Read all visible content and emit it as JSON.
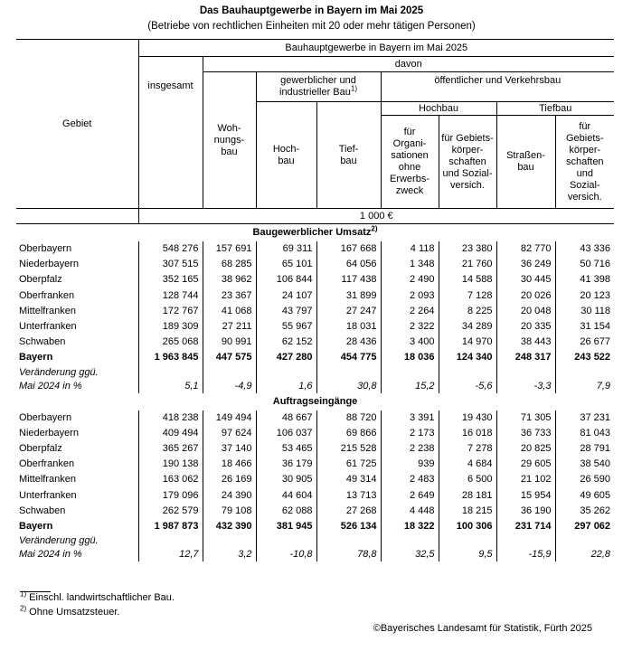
{
  "title": "Das Bauhauptgewerbe in Bayern im Mai 2025",
  "subtitle": "(Betriebe von rechtlichen Einheiten mit 20 oder mehr tätigen Personen)",
  "header": {
    "gebiet": "Gebiet",
    "top": "Bauhauptgewerbe in Bayern im Mai 2025",
    "insgesamt": "insgesamt",
    "davon": "davon",
    "wohnungsbau": "Woh-\nnungs-\nbau",
    "gewerblich": "gewerblicher und\nindustrieller Bau",
    "gewerblich_sup": "1)",
    "oeffentlich": "öffentlicher und Verkehrsbau",
    "hochbau_group": "Hochbau",
    "tiefbau_group": "Tiefbau",
    "hochbau": "Hoch-\nbau",
    "tiefbau": "Tief-\nbau",
    "org": "für\nOrgani-\nsationen\nohne\nErwerbs-\nzweck",
    "geb1": "für Gebiets-\nkörper-\nschaften\nund Sozial-\nversich.",
    "strassen": "Straßen-\nbau",
    "geb2": "für\nGebiets-\nkörper-\nschaften\nund\nSozial-\nversich.",
    "unit": "1 000 €"
  },
  "sections": [
    {
      "title": "Baugewerblicher Umsatz",
      "sup": "2)",
      "rows": [
        {
          "name": "Oberbayern",
          "v": [
            "548 276",
            "157 691",
            "69 311",
            "167 668",
            "4 118",
            "23 380",
            "82 770",
            "43 336"
          ]
        },
        {
          "name": "Niederbayern",
          "v": [
            "307 515",
            "68 285",
            "65 101",
            "64 056",
            "1 348",
            "21 760",
            "36 249",
            "50 716"
          ]
        },
        {
          "name": "Oberpfalz",
          "v": [
            "352 165",
            "38 962",
            "106 844",
            "117 438",
            "2 490",
            "14 588",
            "30 445",
            "41 398"
          ]
        },
        {
          "name": "Oberfranken",
          "v": [
            "128 744",
            "23 367",
            "24 107",
            "31 899",
            "2 093",
            "7 128",
            "20 026",
            "20 123"
          ]
        },
        {
          "name": "Mittelfranken",
          "v": [
            "172 767",
            "41 068",
            "43 797",
            "27 247",
            "2 264",
            "8 225",
            "20 048",
            "30 118"
          ]
        },
        {
          "name": "Unterfranken",
          "v": [
            "189 309",
            "27 211",
            "55 967",
            "18 031",
            "2 322",
            "34 289",
            "20 335",
            "31 154"
          ]
        },
        {
          "name": "Schwaben",
          "v": [
            "265 068",
            "90 991",
            "62 152",
            "28 436",
            "3 400",
            "14 970",
            "38 443",
            "26 677"
          ]
        }
      ],
      "total": {
        "name": "Bayern",
        "v": [
          "1 963 845",
          "447 575",
          "427 280",
          "454 775",
          "18 036",
          "124 340",
          "248 317",
          "243 522"
        ]
      },
      "change": {
        "line1": "Veränderung ggü.",
        "line2": "Mai 2024 in %",
        "v": [
          "5,1",
          "-4,9",
          "1,6",
          "30,8",
          "15,2",
          "-5,6",
          "-3,3",
          "7,9"
        ]
      }
    },
    {
      "title": "Auftragseingänge",
      "sup": "",
      "rows": [
        {
          "name": "Oberbayern",
          "v": [
            "418 238",
            "149 494",
            "48 667",
            "88 720",
            "3 391",
            "19 430",
            "71 305",
            "37 231"
          ]
        },
        {
          "name": "Niederbayern",
          "v": [
            "409 494",
            "97 624",
            "106 037",
            "69 866",
            "2 173",
            "16 018",
            "36 733",
            "81 043"
          ]
        },
        {
          "name": "Oberpfalz",
          "v": [
            "365 267",
            "37 140",
            "53 465",
            "215 528",
            "2 238",
            "7 278",
            "20 825",
            "28 791"
          ]
        },
        {
          "name": "Oberfranken",
          "v": [
            "190 138",
            "18 466",
            "36 179",
            "61 725",
            "939",
            "4 684",
            "29 605",
            "38 540"
          ]
        },
        {
          "name": "Mittelfranken",
          "v": [
            "163 062",
            "26 169",
            "30 905",
            "49 314",
            "2 483",
            "6 500",
            "21 102",
            "26 590"
          ]
        },
        {
          "name": "Unterfranken",
          "v": [
            "179 096",
            "24 390",
            "44 604",
            "13 713",
            "2 649",
            "28 181",
            "15 954",
            "49 605"
          ]
        },
        {
          "name": "Schwaben",
          "v": [
            "262 579",
            "79 108",
            "62 088",
            "27 268",
            "4 448",
            "18 215",
            "36 190",
            "35 262"
          ]
        }
      ],
      "total": {
        "name": "Bayern",
        "v": [
          "1 987 873",
          "432 390",
          "381 945",
          "526 134",
          "18 322",
          "100 306",
          "231 714",
          "297 062"
        ]
      },
      "change": {
        "line1": "Veränderung ggü.",
        "line2": "Mai 2024 in %",
        "v": [
          "12,7",
          "3,2",
          "-10,8",
          "78,8",
          "32,5",
          "9,5",
          "-15,9",
          "22,8"
        ]
      }
    }
  ],
  "footnotes": [
    {
      "sup": "1)",
      "text": " Einschl. landwirtschaftlicher Bau."
    },
    {
      "sup": "2)",
      "text": " Ohne Umsatzsteuer."
    }
  ],
  "copyright": "©Bayerisches Landesamt für Statistik, Fürth 2025"
}
